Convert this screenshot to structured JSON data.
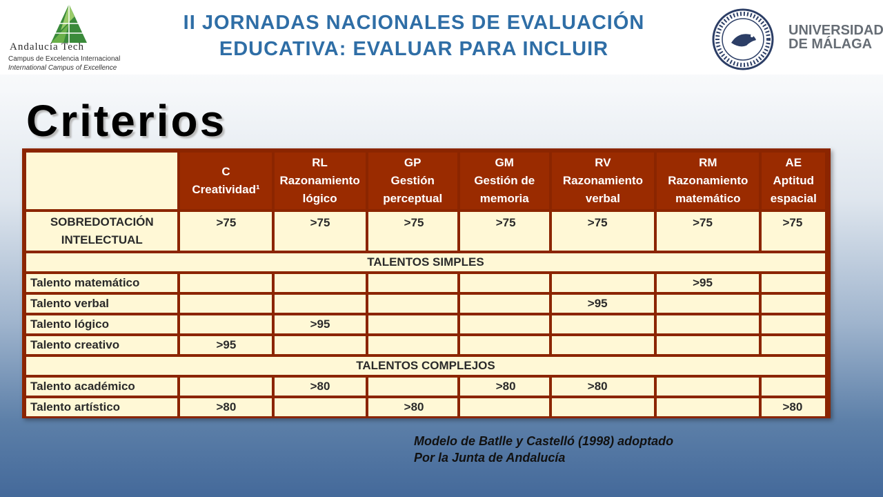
{
  "header": {
    "left_logo": {
      "name": "Andalucía Tech",
      "line1": "Campus de Excelencia Internacional",
      "line2": "International Campus of Excellence"
    },
    "title_line1": "II JORNADAS NACIONALES DE EVALUACIÓN",
    "title_line2": "EDUCATIVA: EVALUAR PARA INCLUIR",
    "right_logo": {
      "line1": "UNIVERSIDAD",
      "line2": "DE MÁLAGA"
    }
  },
  "heading": "Criterios",
  "table": {
    "columns": [
      {
        "code": "C",
        "line1": "Creatividad¹",
        "line2": ""
      },
      {
        "code": "RL",
        "line1": "Razonamiento",
        "line2": "lógico"
      },
      {
        "code": "GP",
        "line1": "Gestión",
        "line2": "perceptual"
      },
      {
        "code": "GM",
        "line1": "Gestión de",
        "line2": "memoria"
      },
      {
        "code": "RV",
        "line1": "Razonamiento",
        "line2": "verbal"
      },
      {
        "code": "RM",
        "line1": "Razonamiento",
        "line2": "matemático"
      },
      {
        "code": "AE",
        "line1": "Aptitud",
        "line2": "espacial"
      }
    ],
    "sobredotacion": {
      "label_line1": "SOBREDOTACIÓN",
      "label_line2": "INTELECTUAL",
      "values": [
        ">75",
        ">75",
        ">75",
        ">75",
        ">75",
        ">75",
        ">75"
      ]
    },
    "section_simple": "TALENTOS SIMPLES",
    "simple_rows": [
      {
        "label": "Talento matemático",
        "values": [
          "",
          "",
          "",
          "",
          "",
          ">95",
          ""
        ]
      },
      {
        "label": "Talento verbal",
        "values": [
          "",
          "",
          "",
          "",
          ">95",
          "",
          ""
        ]
      },
      {
        "label": "Talento lógico",
        "values": [
          "",
          ">95",
          "",
          "",
          "",
          "",
          ""
        ]
      },
      {
        "label": "Talento creativo",
        "values": [
          ">95",
          "",
          "",
          "",
          "",
          "",
          ""
        ]
      }
    ],
    "section_complex": "TALENTOS COMPLEJOS",
    "complex_rows": [
      {
        "label": "Talento académico",
        "values": [
          "",
          ">80",
          "",
          ">80",
          ">80",
          "",
          ""
        ]
      },
      {
        "label": "Talento artístico",
        "values": [
          ">80",
          "",
          ">80",
          "",
          "",
          "",
          ">80"
        ]
      }
    ]
  },
  "caption_line1": "Modelo de Batlle y Castelló (1998) adoptado",
  "caption_line2": "Por la Junta de Andalucía",
  "colors": {
    "title_blue": "#2f6ea6",
    "table_header": "#9a2b00",
    "table_border": "#8b2500",
    "cell_fill": "#fff8d6",
    "logo_green": "#3a8a3a"
  }
}
